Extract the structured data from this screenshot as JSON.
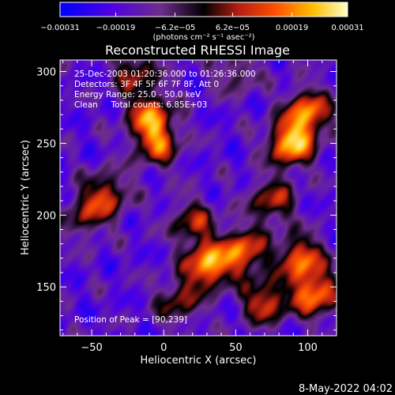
{
  "chart_data": {
    "type": "heatmap",
    "title": "Reconstructed RHESSI Image",
    "xlabel": "Heliocentric X (arcsec)",
    "ylabel": "Heliocentric Y (arcsec)",
    "xlim": [
      -72,
      120
    ],
    "ylim": [
      116,
      308
    ],
    "x_ticks": [
      -50,
      0,
      50,
      100
    ],
    "y_ticks": [
      150,
      200,
      250,
      300
    ],
    "x_tick_labels": [
      "−50",
      "0",
      "50",
      "100"
    ],
    "y_tick_labels": [
      "150",
      "200",
      "250",
      "300"
    ],
    "colorbar": {
      "min": -0.00031,
      "max": 0.00031,
      "ticks": [
        -0.00031,
        -0.00019,
        -6.2e-05,
        6.2e-05,
        0.00019,
        0.00031
      ],
      "tick_labels": [
        "−0.00031",
        "−0.00019",
        "−6.2e−05",
        "6.2e−05",
        "0.00019",
        "0.00031"
      ],
      "unit_label": "(photons cm⁻² s⁻¹ asec⁻²)"
    },
    "annotations": [
      "25-Dec-2003 01:20:36.000 to 01:26:36.000",
      "Detectors: 3F 4F 5F 6F 7F 8F, Att 0",
      "Energy Range: 25.0 - 50.0 keV",
      "Clean     Total counts: 6.85E+03"
    ],
    "peak_label": "Position of Peak = [90,239]",
    "peak": [
      90,
      239
    ],
    "sources": [
      {
        "x": 88,
        "y": 250,
        "strength": 1.0
      },
      {
        "x": 100,
        "y": 272,
        "strength": 0.85
      },
      {
        "x": 30,
        "y": 165,
        "strength": 0.95
      },
      {
        "x": 55,
        "y": 175,
        "strength": 0.8
      },
      {
        "x": 95,
        "y": 170,
        "strength": 0.8
      },
      {
        "x": 105,
        "y": 145,
        "strength": 0.85
      },
      {
        "x": 70,
        "y": 140,
        "strength": 0.7
      },
      {
        "x": -10,
        "y": 270,
        "strength": 0.75
      },
      {
        "x": -5,
        "y": 250,
        "strength": 0.7
      },
      {
        "x": -40,
        "y": 215,
        "strength": 0.6
      },
      {
        "x": -55,
        "y": 200,
        "strength": 0.45
      },
      {
        "x": 20,
        "y": 195,
        "strength": 0.55
      },
      {
        "x": 75,
        "y": 210,
        "strength": 0.6
      },
      {
        "x": -20,
        "y": 300,
        "strength": 0.55
      },
      {
        "x": 10,
        "y": 140,
        "strength": 0.5
      },
      {
        "x": 50,
        "y": 300,
        "strength": 0.35
      }
    ],
    "colormap": [
      "#0000ff",
      "#5000e0",
      "#6e2d8c",
      "#000000",
      "#b41e14",
      "#ff5000",
      "#ffbe00",
      "#ffffc8"
    ],
    "footer_date": "8-May-2022 04:02"
  }
}
